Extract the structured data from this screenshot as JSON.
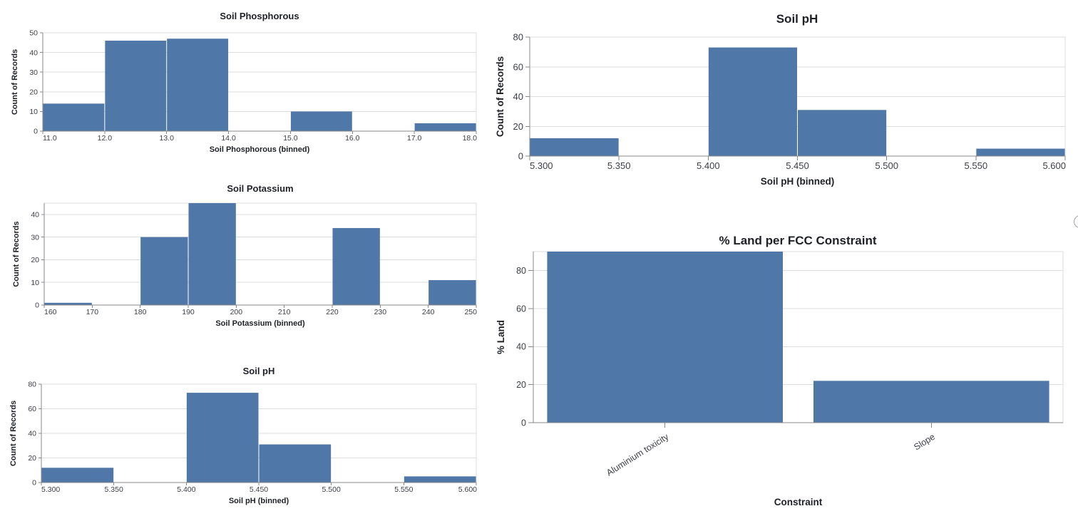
{
  "colors": {
    "bar": "#4f78a8",
    "grid": "#dddddd",
    "view_border": "#dddddd",
    "axis_domain": "#888888",
    "tick_label": "#3b3f46",
    "title": "#1e2126"
  },
  "chart_data": [
    {
      "id": "soil-phosphorous",
      "type": "histogram",
      "title": "Soil Phosphorous",
      "xlabel": "Soil Phosphorous (binned)",
      "ylabel": "Count of Records",
      "x_domain": [
        11,
        18
      ],
      "y_domain": [
        0,
        50
      ],
      "grid": true,
      "x_ticks": [
        {
          "v": 11,
          "t": "11.0"
        },
        {
          "v": 12,
          "t": "12.0"
        },
        {
          "v": 13,
          "t": "13.0"
        },
        {
          "v": 14,
          "t": "14.0"
        },
        {
          "v": 15,
          "t": "15.0"
        },
        {
          "v": 16,
          "t": "16.0"
        },
        {
          "v": 17,
          "t": "17.0"
        },
        {
          "v": 18,
          "t": "18.0"
        }
      ],
      "y_ticks": [
        {
          "v": 0,
          "t": "0"
        },
        {
          "v": 10,
          "t": "10"
        },
        {
          "v": 20,
          "t": "20"
        },
        {
          "v": 30,
          "t": "30"
        },
        {
          "v": 40,
          "t": "40"
        },
        {
          "v": 50,
          "t": "50"
        }
      ],
      "bins": [
        {
          "x0": 11,
          "x1": 12,
          "count": 14
        },
        {
          "x0": 12,
          "x1": 13,
          "count": 46
        },
        {
          "x0": 13,
          "x1": 14,
          "count": 47
        },
        {
          "x0": 15,
          "x1": 16,
          "count": 10
        },
        {
          "x0": 17,
          "x1": 18,
          "count": 4
        }
      ]
    },
    {
      "id": "soil-ph-large",
      "type": "histogram",
      "title": "Soil pH",
      "xlabel": "Soil pH (binned)",
      "ylabel": "Count of Records",
      "x_domain": [
        5.3,
        5.6
      ],
      "y_domain": [
        0,
        80
      ],
      "grid": true,
      "x_ticks": [
        {
          "v": 5.3,
          "t": "5.300"
        },
        {
          "v": 5.35,
          "t": "5.350"
        },
        {
          "v": 5.4,
          "t": "5.400"
        },
        {
          "v": 5.45,
          "t": "5.450"
        },
        {
          "v": 5.5,
          "t": "5.500"
        },
        {
          "v": 5.55,
          "t": "5.550"
        },
        {
          "v": 5.6,
          "t": "5.600"
        }
      ],
      "y_ticks": [
        {
          "v": 0,
          "t": "0"
        },
        {
          "v": 20,
          "t": "20"
        },
        {
          "v": 40,
          "t": "40"
        },
        {
          "v": 60,
          "t": "60"
        },
        {
          "v": 80,
          "t": "80"
        }
      ],
      "bins": [
        {
          "x0": 5.3,
          "x1": 5.35,
          "count": 12
        },
        {
          "x0": 5.4,
          "x1": 5.45,
          "count": 73
        },
        {
          "x0": 5.45,
          "x1": 5.5,
          "count": 31
        },
        {
          "x0": 5.55,
          "x1": 5.6,
          "count": 5
        }
      ]
    },
    {
      "id": "soil-potassium",
      "type": "histogram",
      "title": "Soil Potassium",
      "xlabel": "Soil Potassium (binned)",
      "ylabel": "Count of Records",
      "x_domain": [
        160,
        250
      ],
      "y_domain": [
        0,
        45
      ],
      "grid": true,
      "x_ticks": [
        {
          "v": 160,
          "t": "160"
        },
        {
          "v": 170,
          "t": "170"
        },
        {
          "v": 180,
          "t": "180"
        },
        {
          "v": 190,
          "t": "190"
        },
        {
          "v": 200,
          "t": "200"
        },
        {
          "v": 210,
          "t": "210"
        },
        {
          "v": 220,
          "t": "220"
        },
        {
          "v": 230,
          "t": "230"
        },
        {
          "v": 240,
          "t": "240"
        },
        {
          "v": 250,
          "t": "250"
        }
      ],
      "y_ticks": [
        {
          "v": 0,
          "t": "0"
        },
        {
          "v": 10,
          "t": "10"
        },
        {
          "v": 20,
          "t": "20"
        },
        {
          "v": 30,
          "t": "30"
        },
        {
          "v": 40,
          "t": "40"
        }
      ],
      "bins": [
        {
          "x0": 160,
          "x1": 170,
          "count": 1
        },
        {
          "x0": 180,
          "x1": 190,
          "count": 30
        },
        {
          "x0": 190,
          "x1": 200,
          "count": 45
        },
        {
          "x0": 220,
          "x1": 230,
          "count": 34
        },
        {
          "x0": 240,
          "x1": 250,
          "count": 11
        }
      ]
    },
    {
      "id": "soil-ph-small",
      "type": "histogram",
      "title": "Soil pH",
      "xlabel": "Soil pH (binned)",
      "ylabel": "Count of Records",
      "x_domain": [
        5.3,
        5.6
      ],
      "y_domain": [
        0,
        80
      ],
      "grid": true,
      "x_ticks": [
        {
          "v": 5.3,
          "t": "5.300"
        },
        {
          "v": 5.35,
          "t": "5.350"
        },
        {
          "v": 5.4,
          "t": "5.400"
        },
        {
          "v": 5.45,
          "t": "5.450"
        },
        {
          "v": 5.5,
          "t": "5.500"
        },
        {
          "v": 5.55,
          "t": "5.550"
        },
        {
          "v": 5.6,
          "t": "5.600"
        }
      ],
      "y_ticks": [
        {
          "v": 0,
          "t": "0"
        },
        {
          "v": 20,
          "t": "20"
        },
        {
          "v": 40,
          "t": "40"
        },
        {
          "v": 60,
          "t": "60"
        },
        {
          "v": 80,
          "t": "80"
        }
      ],
      "bins": [
        {
          "x0": 5.3,
          "x1": 5.35,
          "count": 12
        },
        {
          "x0": 5.4,
          "x1": 5.45,
          "count": 73
        },
        {
          "x0": 5.45,
          "x1": 5.5,
          "count": 31
        },
        {
          "x0": 5.55,
          "x1": 5.6,
          "count": 5
        }
      ]
    },
    {
      "id": "land-fcc",
      "type": "bar",
      "title": "% Land per FCC Constraint",
      "xlabel": "Constraint",
      "ylabel": "% Land",
      "categories": [
        "Aluminium toxicity",
        "Slope"
      ],
      "values": [
        90,
        22
      ],
      "y_domain": [
        0,
        90
      ],
      "grid": true,
      "y_ticks": [
        {
          "v": 0,
          "t": "0"
        },
        {
          "v": 20,
          "t": "20"
        },
        {
          "v": 40,
          "t": "40"
        },
        {
          "v": 60,
          "t": "60"
        },
        {
          "v": 80,
          "t": "80"
        }
      ]
    }
  ]
}
